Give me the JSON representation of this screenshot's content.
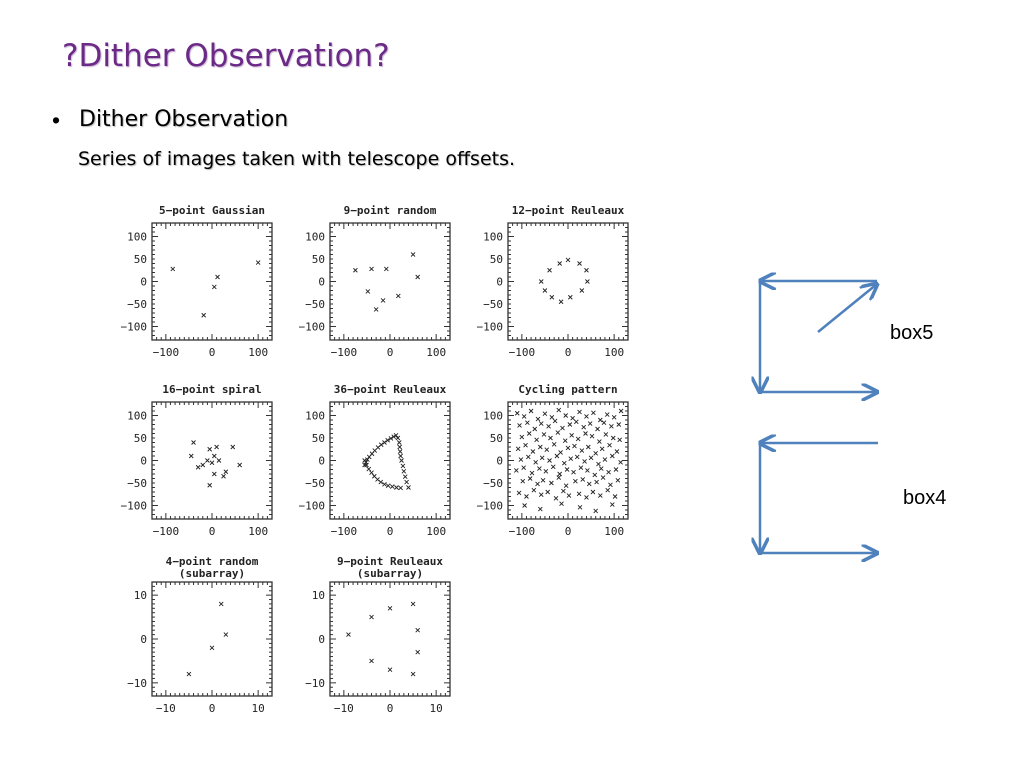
{
  "slide": {
    "title": "?Dither Observation?",
    "bullet": "Dither Observation",
    "subtext": "Series of images taken with telescope offsets."
  },
  "chart_data": [
    {
      "type": "scatter",
      "title": "5−point Gaussian",
      "xlim": [
        -130,
        130
      ],
      "ylim": [
        -130,
        130
      ],
      "xticks": [
        -100,
        0,
        100
      ],
      "yticks": [
        100,
        50,
        0,
        -50,
        -100
      ],
      "x": [
        -85,
        12,
        5,
        100,
        -18
      ],
      "y": [
        28,
        10,
        -12,
        42,
        -75
      ]
    },
    {
      "type": "scatter",
      "title": "9−point random",
      "xlim": [
        -130,
        130
      ],
      "ylim": [
        -130,
        130
      ],
      "xticks": [
        -100,
        0,
        100
      ],
      "yticks": [
        100,
        50,
        0,
        -50,
        -100
      ],
      "x": [
        -40,
        -8,
        50,
        60,
        -75,
        -48,
        18,
        -15,
        -30
      ],
      "y": [
        28,
        28,
        60,
        10,
        25,
        -22,
        -32,
        -42,
        -62
      ]
    },
    {
      "type": "scatter",
      "title": "12−point Reuleaux",
      "xlim": [
        -130,
        130
      ],
      "ylim": [
        -130,
        130
      ],
      "xticks": [
        -100,
        0,
        100
      ],
      "yticks": [
        100,
        50,
        0,
        -50,
        -100
      ],
      "x": [
        -40,
        -18,
        0,
        25,
        40,
        42,
        30,
        5,
        -15,
        -35,
        -50,
        -58
      ],
      "y": [
        25,
        40,
        48,
        40,
        25,
        0,
        -20,
        -35,
        -45,
        -35,
        -20,
        0
      ]
    },
    {
      "type": "scatter",
      "title": "16−point spiral",
      "xlim": [
        -130,
        130
      ],
      "ylim": [
        -130,
        130
      ],
      "xticks": [
        -100,
        0,
        100
      ],
      "yticks": [
        100,
        50,
        0,
        -50,
        -100
      ],
      "x": [
        -40,
        10,
        -5,
        5,
        15,
        -10,
        45,
        -45,
        0,
        -20,
        60,
        30,
        5,
        -30,
        25,
        -5
      ],
      "y": [
        40,
        30,
        25,
        10,
        0,
        0,
        30,
        10,
        -5,
        -10,
        -10,
        -25,
        -30,
        -15,
        -35,
        -55
      ]
    },
    {
      "type": "scatter",
      "title": "36−point Reuleaux",
      "xlim": [
        -130,
        130
      ],
      "ylim": [
        -130,
        130
      ],
      "xticks": [
        -100,
        0,
        100
      ],
      "yticks": [
        100,
        50,
        0,
        -50,
        -100
      ],
      "x": [
        40,
        36,
        33,
        30,
        28,
        25,
        23,
        22,
        21,
        20,
        17,
        13,
        8,
        2,
        -5,
        -12,
        -19,
        -26,
        -33,
        -39,
        -45,
        -49,
        -52,
        -55,
        -55,
        -51,
        -46,
        -40,
        -34,
        -27,
        -20,
        -12,
        -4,
        5,
        14,
        23
      ],
      "y": [
        -60,
        -48,
        -36,
        -24,
        -12,
        0,
        10,
        20,
        30,
        40,
        50,
        56,
        53,
        49,
        45,
        40,
        35,
        29,
        22,
        15,
        8,
        2,
        -4,
        -10,
        0,
        -10,
        -19,
        -27,
        -35,
        -42,
        -48,
        -53,
        -56,
        -58,
        -60,
        -61
      ]
    },
    {
      "type": "scatter",
      "title": "Cycling pattern",
      "xlim": [
        -130,
        130
      ],
      "ylim": [
        -130,
        130
      ],
      "xticks": [
        -100,
        0,
        100
      ],
      "yticks": [
        100,
        50,
        0,
        -50,
        -100
      ],
      "x": [
        -110,
        -95,
        -80,
        -65,
        -50,
        -35,
        -20,
        -5,
        10,
        25,
        40,
        55,
        70,
        85,
        100,
        115,
        -105,
        -88,
        -72,
        -58,
        -42,
        -28,
        -12,
        4,
        18,
        34,
        48,
        64,
        78,
        94,
        110,
        -100,
        -84,
        -68,
        -52,
        -38,
        -22,
        -6,
        8,
        22,
        38,
        52,
        68,
        82,
        98,
        112,
        -108,
        -92,
        -76,
        -60,
        -46,
        -30,
        -16,
        0,
        14,
        30,
        44,
        60,
        74,
        90,
        106,
        -102,
        -86,
        -70,
        -56,
        -40,
        -24,
        -8,
        6,
        20,
        36,
        50,
        66,
        80,
        96,
        114,
        -112,
        -96,
        -78,
        -62,
        -48,
        -32,
        -18,
        -2,
        12,
        28,
        42,
        58,
        72,
        88,
        104,
        -98,
        -82,
        -66,
        -54,
        -36,
        -20,
        -4,
        16,
        32,
        46,
        62,
        76,
        92,
        108,
        -106,
        -90,
        -74,
        -58,
        -44,
        -26,
        -10,
        2,
        24,
        40,
        54,
        70,
        86,
        102,
        -94,
        -60,
        -14,
        26,
        60,
        96
      ],
      "y": [
        105,
        98,
        110,
        92,
        104,
        96,
        112,
        100,
        94,
        108,
        98,
        106,
        90,
        102,
        96,
        110,
        78,
        84,
        70,
        82,
        76,
        88,
        72,
        80,
        86,
        74,
        82,
        70,
        84,
        76,
        80,
        52,
        60,
        46,
        58,
        50,
        62,
        44,
        56,
        48,
        60,
        54,
        42,
        58,
        50,
        46,
        26,
        34,
        20,
        30,
        24,
        36,
        18,
        28,
        32,
        22,
        30,
        16,
        26,
        34,
        20,
        2,
        8,
        -4,
        6,
        0,
        10,
        -6,
        4,
        8,
        -2,
        6,
        -8,
        2,
        10,
        -4,
        -22,
        -16,
        -28,
        -18,
        -24,
        -14,
        -30,
        -20,
        -26,
        -16,
        -22,
        -32,
        -18,
        -26,
        -20,
        -46,
        -40,
        -52,
        -44,
        -50,
        -38,
        -56,
        -46,
        -42,
        -52,
        -48,
        -38,
        -54,
        -44,
        -72,
        -80,
        -66,
        -76,
        -70,
        -84,
        -68,
        -78,
        -74,
        -82,
        -70,
        -78,
        -66,
        -80,
        -100,
        -108,
        -96,
        -104,
        -112,
        -98
      ]
    },
    {
      "type": "scatter",
      "title": "4−point random",
      "subtitle": "(subarray)",
      "xlim": [
        -13,
        13
      ],
      "ylim": [
        -13,
        13
      ],
      "xticks": [
        -10,
        0,
        10
      ],
      "yticks": [
        10,
        0,
        -10
      ],
      "x": [
        2,
        3,
        0,
        -5
      ],
      "y": [
        8,
        1,
        -2,
        -8
      ]
    },
    {
      "type": "scatter",
      "title": "9−point Reuleaux",
      "subtitle": "(subarray)",
      "xlim": [
        -13,
        13
      ],
      "ylim": [
        -13,
        13
      ],
      "xticks": [
        -10,
        0,
        10
      ],
      "yticks": [
        10,
        0,
        -10
      ],
      "x": [
        5,
        0,
        -4,
        -9,
        6,
        6,
        -4,
        0,
        5
      ],
      "y": [
        8,
        7,
        5,
        1,
        2,
        -3,
        -5,
        -7,
        -8
      ]
    }
  ],
  "diagram": {
    "box5_label": "box5",
    "box4_label": "box4",
    "arrow_color": "#4f81bd"
  }
}
